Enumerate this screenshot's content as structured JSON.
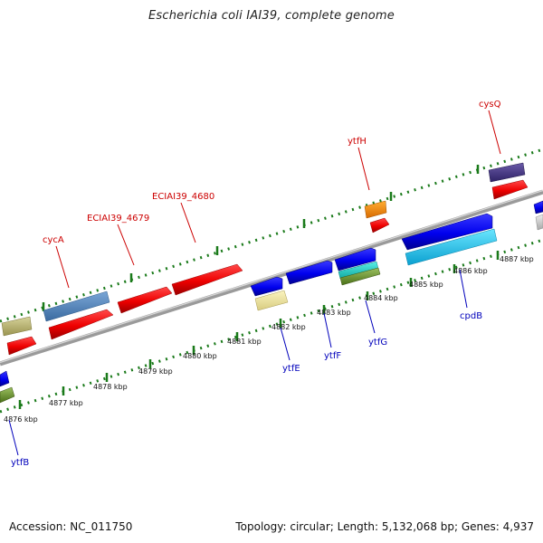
{
  "title": "Escherichia coli IAI39, complete genome",
  "footer": {
    "accession": "Accession: NC_011750",
    "topology": "Topology: circular; Length: 5,132,068 bp; Genes: 4,937"
  },
  "colors": {
    "forward_label": "#cc0000",
    "reverse_label": "#0000bb",
    "backbone": "#808080",
    "tick": "#1a7a1a"
  },
  "kbp_labels": [
    "4876 kbp",
    "4877 kbp",
    "4878 kbp",
    "4879 kbp",
    "4880 kbp",
    "4881 kbp",
    "4882 kbp",
    "4883 kbp",
    "4884 kbp",
    "4885 kbp",
    "4886 kbp",
    "4887 kbp"
  ],
  "gene_labels": {
    "top": [
      "cycA",
      "ECIAI39_4679",
      "ECIAI39_4680",
      "ytfH",
      "cysQ"
    ],
    "bottom": [
      "ytfB",
      "ytfE",
      "ytfF",
      "ytfG",
      "cpdB"
    ]
  }
}
